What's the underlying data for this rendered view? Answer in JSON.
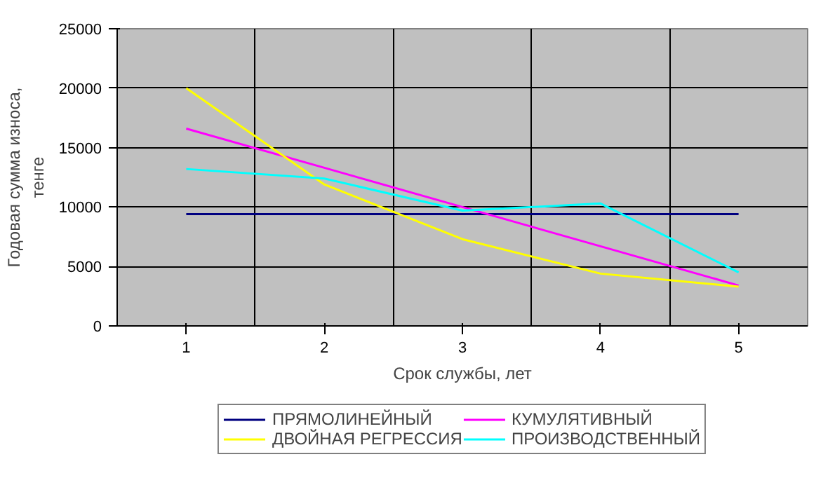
{
  "chart_data": {
    "type": "line",
    "xlabel": "Срок службы, лет",
    "ylabel": "Годовая сумма износа,\nтенге",
    "categories": [
      "1",
      "2",
      "3",
      "4",
      "5"
    ],
    "series": [
      {
        "name": "ПРЯМОЛИНЕЙНЫЙ",
        "color": "#000080",
        "values": [
          9400,
          9400,
          9400,
          9400,
          9400
        ]
      },
      {
        "name": "КУМУЛЯТИВНЫЙ",
        "color": "#ff00ff",
        "values": [
          16600,
          13300,
          10000,
          6700,
          3400
        ]
      },
      {
        "name": "ДВОЙНАЯ РЕГРЕССИЯ",
        "color": "#ffff00",
        "values": [
          20000,
          11900,
          7300,
          4400,
          3300
        ]
      },
      {
        "name": "ПРОИЗВОДСТВЕННЫЙ",
        "color": "#00ffff",
        "values": [
          13200,
          12400,
          9700,
          10300,
          4500
        ]
      }
    ],
    "ylim": [
      0,
      25000
    ],
    "yticks": [
      0,
      5000,
      10000,
      15000,
      20000,
      25000
    ],
    "grid": true,
    "legend": "bottom",
    "marker": "none",
    "line_style": "solid"
  }
}
